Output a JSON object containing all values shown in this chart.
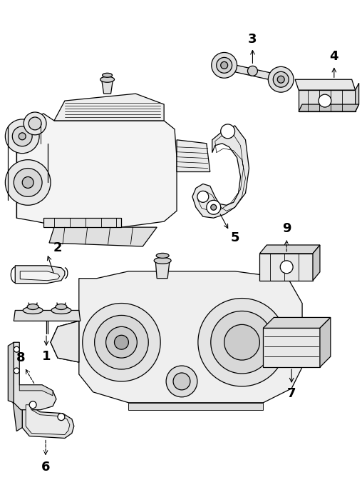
{
  "bg_color": "#ffffff",
  "line_color": "#000000",
  "fig_width": 5.08,
  "fig_height": 6.79,
  "dpi": 100,
  "label_fontsize": 13,
  "label_fontweight": "bold"
}
